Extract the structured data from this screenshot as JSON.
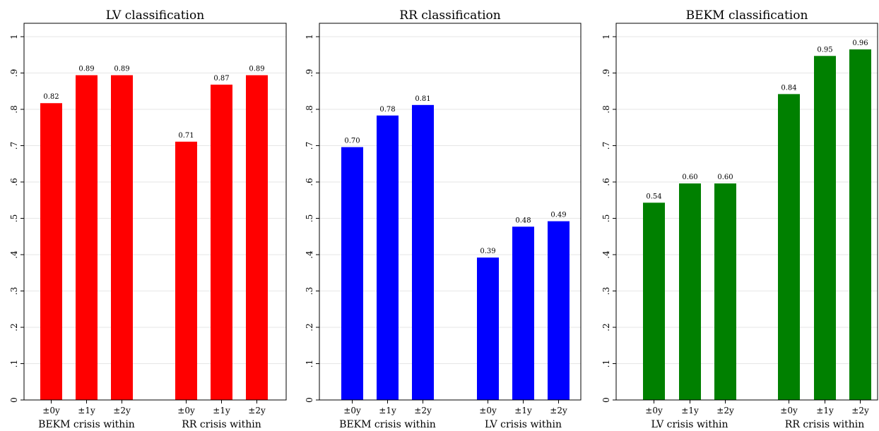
{
  "chart_data": [
    {
      "type": "bar",
      "title": "LV classification",
      "ylim": [
        0,
        1
      ],
      "yticks": [
        "0",
        ".1",
        ".2",
        ".3",
        ".4",
        ".5",
        ".6",
        ".7",
        ".8",
        ".9",
        "1"
      ],
      "grid": true,
      "color": "#ff0000",
      "groups": [
        {
          "label": "BEKM crisis within",
          "categories": [
            "±0y",
            "±1y",
            "±2y"
          ],
          "values": [
            0.817,
            0.894,
            0.894
          ],
          "data_labels": [
            "0.82",
            "0.89",
            "0.89"
          ]
        },
        {
          "label": "RR crisis within",
          "categories": [
            "±0y",
            "±1y",
            "±2y"
          ],
          "values": [
            0.711,
            0.868,
            0.894
          ],
          "data_labels": [
            "0.71",
            "0.87",
            "0.89"
          ]
        }
      ]
    },
    {
      "type": "bar",
      "title": "RR classification",
      "ylim": [
        0,
        1
      ],
      "yticks": [
        "0",
        ".1",
        ".2",
        ".3",
        ".4",
        ".5",
        ".6",
        ".7",
        ".8",
        ".9",
        "1"
      ],
      "grid": true,
      "color": "#0000ff",
      "groups": [
        {
          "label": "BEKM crisis within",
          "categories": [
            "±0y",
            "±1y",
            "±2y"
          ],
          "values": [
            0.696,
            0.783,
            0.812
          ],
          "data_labels": [
            "0.70",
            "0.78",
            "0.81"
          ]
        },
        {
          "label": "LV crisis within",
          "categories": [
            "±0y",
            "±1y",
            "±2y"
          ],
          "values": [
            0.392,
            0.477,
            0.492
          ],
          "data_labels": [
            "0.39",
            "0.48",
            "0.49"
          ]
        }
      ]
    },
    {
      "type": "bar",
      "title": "BEKM classification",
      "ylim": [
        0,
        1
      ],
      "yticks": [
        "0",
        ".1",
        ".2",
        ".3",
        ".4",
        ".5",
        ".6",
        ".7",
        ".8",
        ".9",
        "1"
      ],
      "grid": true,
      "color": "#008000",
      "groups": [
        {
          "label": "LV crisis within",
          "categories": [
            "±0y",
            "±1y",
            "±2y"
          ],
          "values": [
            0.543,
            0.596,
            0.596
          ],
          "data_labels": [
            "0.54",
            "0.60",
            "0.60"
          ]
        },
        {
          "label": "RR crisis within",
          "categories": [
            "±0y",
            "±1y",
            "±2y"
          ],
          "values": [
            0.842,
            0.947,
            0.965
          ],
          "data_labels": [
            "0.84",
            "0.95",
            "0.96"
          ]
        }
      ]
    }
  ]
}
